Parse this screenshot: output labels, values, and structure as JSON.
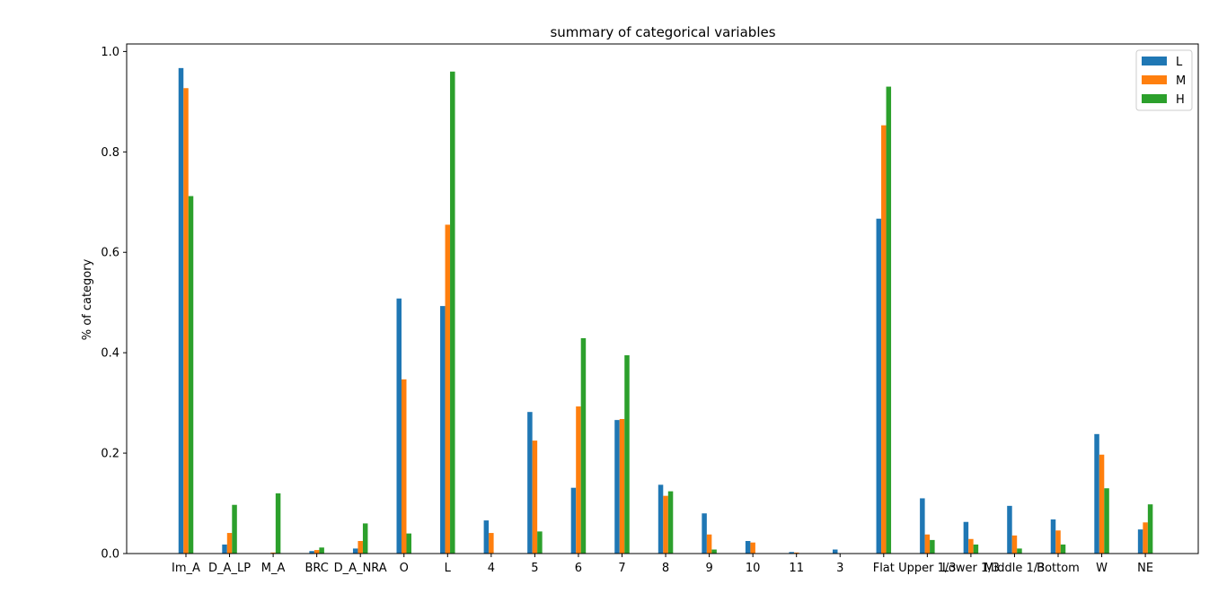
{
  "chart_data": {
    "type": "bar",
    "title": "summary of categorical variables",
    "xlabel": "",
    "ylabel": "% of category",
    "ylim": [
      0,
      1.015
    ],
    "yticks": [
      "0.0",
      "0.2",
      "0.4",
      "0.6",
      "0.8",
      "1.0"
    ],
    "grid": false,
    "legend_position": "top-right",
    "categories": [
      "Im_A",
      "D_A_LP",
      "M_A",
      "BRC",
      "D_A_NRA",
      "O",
      "L",
      "4",
      "5",
      "6",
      "7",
      "8",
      "9",
      "10",
      "11",
      "3",
      "Flat",
      "Upper 1/3",
      "Lower 1/3",
      "Middle 1/3",
      "Bottom",
      "W",
      "NE"
    ],
    "series": [
      {
        "name": "L",
        "color": "#1f77b4",
        "values": [
          0.967,
          0.018,
          0.0,
          0.005,
          0.01,
          0.508,
          0.493,
          0.066,
          0.282,
          0.131,
          0.266,
          0.137,
          0.08,
          0.025,
          0.003,
          0.008,
          0.667,
          0.11,
          0.063,
          0.095,
          0.068,
          0.238,
          0.048
        ]
      },
      {
        "name": "M",
        "color": "#ff7f0e",
        "values": [
          0.927,
          0.041,
          0.002,
          0.007,
          0.025,
          0.347,
          0.655,
          0.041,
          0.225,
          0.293,
          0.268,
          0.115,
          0.038,
          0.022,
          0.002,
          0.0,
          0.853,
          0.038,
          0.029,
          0.036,
          0.046,
          0.197,
          0.062
        ]
      },
      {
        "name": "H",
        "color": "#2ca02c",
        "values": [
          0.712,
          0.097,
          0.12,
          0.012,
          0.06,
          0.04,
          0.96,
          0.0,
          0.044,
          0.429,
          0.395,
          0.124,
          0.008,
          0.0,
          0.0,
          0.0,
          0.93,
          0.027,
          0.018,
          0.01,
          0.018,
          0.13,
          0.098
        ]
      }
    ]
  }
}
